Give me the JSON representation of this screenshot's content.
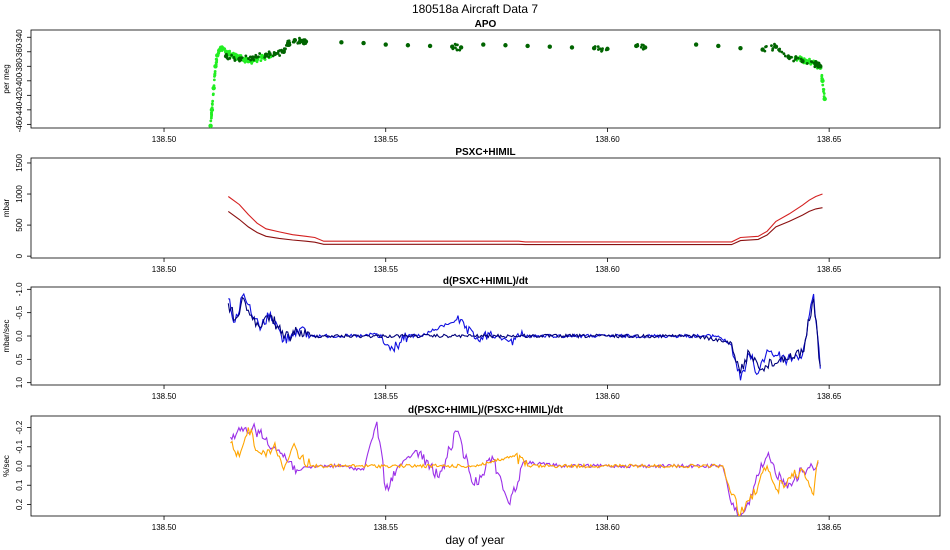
{
  "figure": {
    "title": "180518a   Aircraft Data 7",
    "xlabel": "day of year"
  },
  "chart_data": [
    {
      "type": "scatter",
      "title": "APO",
      "ylabel": "per meg",
      "xlim": [
        138.47,
        138.675
      ],
      "ylim": [
        -465,
        -330
      ],
      "y_reversed": false,
      "x_ticks": [
        138.5,
        138.55,
        138.6,
        138.65
      ],
      "x_tick_labels": [
        "138.50",
        "138.55",
        "138.60",
        "138.65"
      ],
      "y_ticks": [
        -340,
        -360,
        -380,
        -400,
        -420,
        -440,
        -460
      ],
      "y_tick_labels": [
        "-340",
        "-360",
        "-380",
        "-400",
        "-420",
        "-440",
        "-460"
      ],
      "series": [
        {
          "color": "#22ee22",
          "marker": "dot",
          "x": [
            138.5105,
            138.5108,
            138.5112,
            138.5116,
            138.512,
            138.5125,
            138.513,
            138.514,
            138.515,
            138.516,
            138.517,
            138.518,
            138.519,
            138.52,
            138.521,
            138.5225,
            138.524,
            138.6425,
            138.644,
            138.6455,
            138.647,
            138.648,
            138.6485,
            138.649
          ],
          "y": [
            -462,
            -440,
            -410,
            -380,
            -365,
            -358,
            -356,
            -360,
            -364,
            -366,
            -368,
            -371,
            -373,
            -372,
            -370,
            -368,
            -366,
            -368,
            -371,
            -374,
            -377,
            -382,
            -400,
            -425
          ]
        },
        {
          "color": "#006400",
          "marker": "dot",
          "x": [
            138.514,
            138.517,
            138.52,
            138.523,
            138.525,
            138.527,
            138.528,
            138.5295,
            138.531,
            138.532,
            138.54,
            138.545,
            138.55,
            138.555,
            138.56,
            138.565,
            138.567,
            138.572,
            138.577,
            138.582,
            138.587,
            138.592,
            138.597,
            138.6,
            138.6065,
            138.6085,
            138.62,
            138.625,
            138.63,
            138.635,
            138.638,
            138.641,
            138.644,
            138.647,
            138.648
          ],
          "y": [
            -366,
            -370,
            -368,
            -364,
            -363,
            -360,
            -348,
            -344,
            -345,
            -346,
            -347,
            -348,
            -350,
            -351,
            -352,
            -353,
            -354,
            -350,
            -351,
            -352,
            -353,
            -354,
            -355,
            -356,
            -352,
            -354,
            -350,
            -352,
            -355,
            -357,
            -353,
            -368,
            -373,
            -377,
            -380
          ]
        }
      ]
    },
    {
      "type": "line",
      "title": "PSXC+HIMIL",
      "ylabel": "mbar",
      "xlim": [
        138.47,
        138.675
      ],
      "ylim": [
        -30,
        1580
      ],
      "y_reversed": false,
      "x_ticks": [
        138.5,
        138.55,
        138.6,
        138.65
      ],
      "x_tick_labels": [
        "138.50",
        "138.55",
        "138.60",
        "138.65"
      ],
      "y_ticks": [
        0,
        500,
        1000,
        1500
      ],
      "y_tick_labels": [
        "0",
        "500",
        "1000",
        "1500"
      ],
      "series": [
        {
          "color": "#d42020",
          "x": [
            138.5145,
            138.517,
            138.519,
            138.521,
            138.523,
            138.526,
            138.529,
            138.532,
            138.534,
            138.536,
            138.54,
            138.55,
            138.56,
            138.57,
            138.58,
            138.5815,
            138.59,
            138.6,
            138.61,
            138.62,
            138.628,
            138.63,
            138.634,
            138.636,
            138.638,
            138.641,
            138.644,
            138.6455,
            138.647,
            138.6485
          ],
          "y": [
            960,
            830,
            670,
            530,
            440,
            390,
            345,
            320,
            300,
            240,
            240,
            240,
            240,
            240,
            240,
            230,
            230,
            230,
            230,
            230,
            230,
            300,
            320,
            400,
            560,
            680,
            820,
            900,
            960,
            1000
          ]
        },
        {
          "color": "#8b1010",
          "x": [
            138.5145,
            138.517,
            138.519,
            138.521,
            138.523,
            138.526,
            138.529,
            138.532,
            138.534,
            138.536,
            138.54,
            138.55,
            138.56,
            138.57,
            138.58,
            138.5815,
            138.59,
            138.6,
            138.61,
            138.62,
            138.628,
            138.63,
            138.634,
            138.636,
            138.638,
            138.641,
            138.644,
            138.6455,
            138.647,
            138.6485
          ],
          "y": [
            720,
            590,
            470,
            380,
            320,
            285,
            260,
            240,
            225,
            190,
            190,
            190,
            190,
            190,
            190,
            185,
            185,
            185,
            185,
            185,
            185,
            250,
            270,
            340,
            470,
            560,
            660,
            720,
            760,
            780
          ]
        }
      ]
    },
    {
      "type": "line",
      "title": "d(PSXC+HIMIL)/dt",
      "ylabel": "mbar/sec",
      "xlim": [
        138.47,
        138.675
      ],
      "ylim": [
        -1.05,
        1.05
      ],
      "y_reversed": true,
      "x_ticks": [
        138.5,
        138.55,
        138.6,
        138.65
      ],
      "x_tick_labels": [
        "138.50",
        "138.55",
        "138.60",
        "138.65"
      ],
      "y_ticks": [
        -1.0,
        -0.5,
        0.0,
        0.5,
        1.0
      ],
      "y_tick_labels": [
        "-1.0",
        "-0.5",
        "0.0",
        "0.5",
        "1.0"
      ],
      "series": [
        {
          "color": "#1010e0",
          "x": [
            138.5145,
            138.516,
            138.518,
            138.52,
            138.522,
            138.524,
            138.527,
            138.53,
            138.533,
            138.536,
            138.545,
            138.548,
            138.551,
            138.555,
            138.558,
            138.566,
            138.57,
            138.574,
            138.578,
            138.581,
            138.585,
            138.595,
            138.605,
            138.615,
            138.625,
            138.628,
            138.63,
            138.632,
            138.634,
            138.636,
            138.64,
            138.644,
            138.6465,
            138.648
          ],
          "y": [
            -0.8,
            -0.3,
            -0.9,
            -0.4,
            -0.2,
            -0.5,
            0.1,
            -0.15,
            0.0,
            0.0,
            0.0,
            -0.05,
            0.3,
            0.0,
            0.0,
            -0.35,
            0.05,
            0.0,
            0.1,
            0.0,
            0.0,
            0.0,
            0.0,
            0.0,
            0.0,
            0.2,
            0.95,
            0.4,
            0.8,
            0.3,
            0.5,
            0.4,
            -0.9,
            0.7
          ]
        },
        {
          "color": "#00007a",
          "x": [
            138.5145,
            138.516,
            138.518,
            138.52,
            138.522,
            138.524,
            138.527,
            138.53,
            138.533,
            138.536,
            138.545,
            138.55,
            138.56,
            138.57,
            138.58,
            138.59,
            138.6,
            138.61,
            138.62,
            138.628,
            138.63,
            138.632,
            138.635,
            138.64,
            138.644,
            138.6465,
            138.648
          ],
          "y": [
            -0.7,
            -0.35,
            -0.8,
            -0.35,
            -0.2,
            -0.45,
            0.05,
            -0.1,
            0.0,
            0.0,
            0.0,
            0.0,
            0.0,
            0.0,
            0.0,
            0.0,
            0.0,
            0.0,
            0.0,
            0.15,
            0.8,
            0.35,
            0.7,
            0.45,
            0.35,
            -0.8,
            0.65
          ]
        }
      ]
    },
    {
      "type": "line",
      "title": "d(PSXC+HIMIL)/(PSXC+HIMIL)/dt",
      "ylabel": "%/sec",
      "xlim": [
        138.47,
        138.675
      ],
      "ylim": [
        -0.26,
        0.26
      ],
      "y_reversed": true,
      "x_ticks": [
        138.5,
        138.55,
        138.6,
        138.65
      ],
      "x_tick_labels": [
        "138.50",
        "138.55",
        "138.60",
        "138.65"
      ],
      "y_ticks": [
        -0.2,
        -0.1,
        0.0,
        0.1,
        0.2
      ],
      "y_tick_labels": [
        "-0.2",
        "-0.1",
        "0.0",
        "0.1",
        "0.2"
      ],
      "series": [
        {
          "color": "#9b30e8",
          "x": [
            138.515,
            138.52,
            138.525,
            138.53,
            138.535,
            138.54,
            138.545,
            138.548,
            138.55,
            138.553,
            138.557,
            138.562,
            138.566,
            138.57,
            138.574,
            138.578,
            138.581,
            138.59,
            138.6,
            138.61,
            138.62,
            138.626,
            138.628,
            138.63,
            138.632,
            138.634,
            138.636,
            138.64,
            138.644,
            138.6475
          ],
          "y": [
            -0.15,
            -0.2,
            -0.1,
            0.02,
            0.0,
            0.0,
            0.02,
            -0.23,
            0.12,
            0.0,
            -0.08,
            0.06,
            -0.18,
            0.1,
            -0.05,
            0.2,
            -0.02,
            0.0,
            0.0,
            0.0,
            0.0,
            0.0,
            0.2,
            0.26,
            0.2,
            0.05,
            -0.05,
            0.1,
            0.03,
            -0.02
          ]
        },
        {
          "color": "#ffa500",
          "x": [
            138.515,
            138.517,
            138.519,
            138.521,
            138.523,
            138.525,
            138.527,
            138.529,
            138.531,
            138.533,
            138.535,
            138.54,
            138.55,
            138.56,
            138.57,
            138.579,
            138.582,
            138.59,
            138.6,
            138.61,
            138.62,
            138.626,
            138.628,
            138.63,
            138.632,
            138.634,
            138.636,
            138.638,
            138.641,
            138.644,
            138.6465,
            138.6475
          ],
          "y": [
            -0.12,
            -0.05,
            -0.2,
            -0.08,
            -0.05,
            -0.12,
            0.02,
            -0.1,
            -0.05,
            0.0,
            0.0,
            0.0,
            0.0,
            0.0,
            0.0,
            -0.05,
            0.0,
            0.0,
            0.0,
            0.0,
            0.0,
            0.0,
            0.15,
            0.25,
            0.18,
            0.1,
            0.0,
            0.12,
            0.06,
            0.02,
            0.15,
            -0.03
          ]
        }
      ]
    }
  ]
}
